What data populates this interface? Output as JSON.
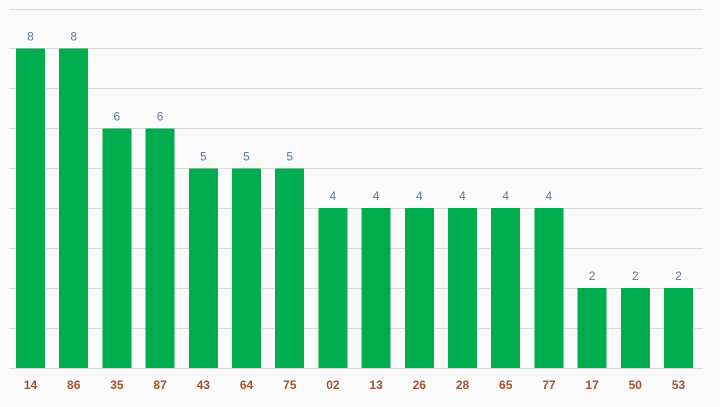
{
  "colors": {
    "background": "#fafafa",
    "bar": "#00ad4e",
    "grid": "#d9d9d9",
    "data_label": "#5c7a99",
    "tick_label": "#a0522d"
  },
  "chart_data": {
    "type": "bar",
    "title": "",
    "xlabel": "",
    "ylabel": "",
    "categories": [
      "14",
      "86",
      "35",
      "87",
      "43",
      "64",
      "75",
      "02",
      "13",
      "26",
      "28",
      "65",
      "77",
      "17",
      "50",
      "53"
    ],
    "values": [
      8,
      8,
      6,
      6,
      5,
      5,
      5,
      4,
      4,
      4,
      4,
      4,
      4,
      2,
      2,
      2
    ],
    "ylim": [
      0,
      9
    ],
    "grid": true,
    "grid_step": 1,
    "data_labels": true,
    "legend": "none"
  }
}
